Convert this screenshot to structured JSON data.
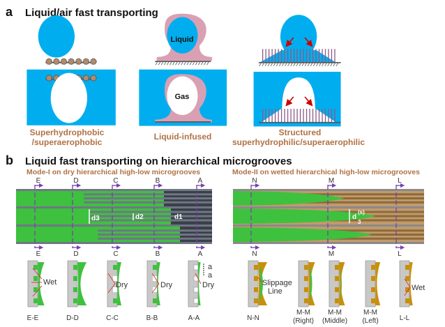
{
  "panel_a": {
    "letter": "a",
    "title": "Liquid/air fast transporting",
    "cases": [
      {
        "label_line1": "Superhydrophobic",
        "label_line2": "/superaerophobic"
      },
      {
        "label_line1": "Liquid-infused",
        "drop_label": "Liquid",
        "bubble_label": "Gas"
      },
      {
        "label_line1": "Structured",
        "label_line2": "superhydrophilic/superaerophilic"
      }
    ]
  },
  "panel_b": {
    "letter": "b",
    "title": "Liquid fast transporting on hierarchical microgrooves",
    "mode1": {
      "subtitle": "Mode-I on dry hierarchical high-low microgrooves",
      "sections": [
        "E",
        "D",
        "C",
        "B",
        "A"
      ],
      "d_labels": [
        "d3",
        "d2",
        "d1"
      ],
      "cross_sections": [
        "E-E",
        "D-D",
        "C-C",
        "B-B",
        "A-A"
      ],
      "annotations": {
        "wet": "Wet",
        "dry": "Dry",
        "a": "a"
      }
    },
    "mode2": {
      "subtitle": "Mode-II on wetted hierarchical high-low microgrooves",
      "sections": [
        "N",
        "M",
        "L"
      ],
      "d_label": "d",
      "d_sub": "3",
      "d_sup": "(s)",
      "cross_sections": [
        {
          "l1": "N-N"
        },
        {
          "l1": "M-M",
          "l2": "(Right)"
        },
        {
          "l1": "M-M",
          "l2": "(Middle)"
        },
        {
          "l1": "M-M",
          "l2": "(Left)"
        },
        {
          "l1": "L-L"
        }
      ],
      "annotations": {
        "slip1": "Slippage",
        "slip2": "Line",
        "wet": "Wet"
      }
    }
  },
  "colors": {
    "water": "#00aeef",
    "oil": "#d9a0b4",
    "brown_text": "#b07245",
    "green": "#3ec13e",
    "purple": "#7a3fb0",
    "gold": "#c8900a"
  }
}
